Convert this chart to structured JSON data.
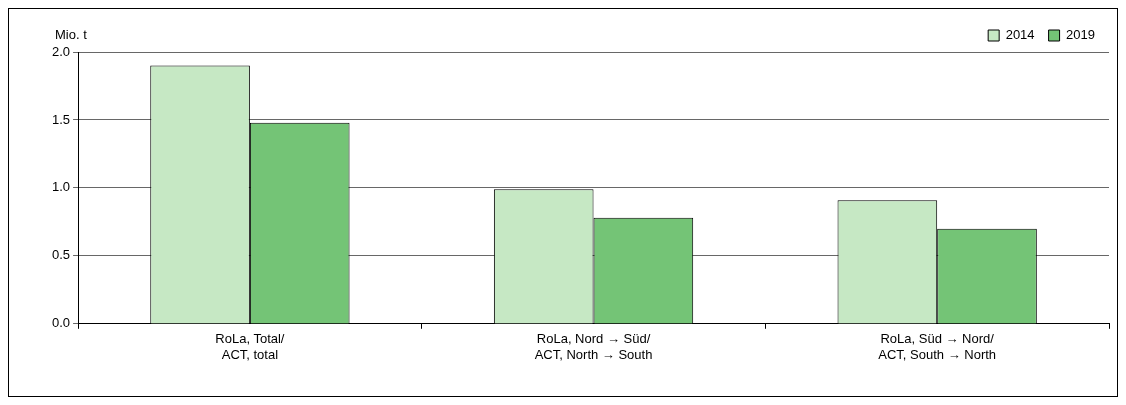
{
  "chart_data": {
    "type": "bar",
    "ylabel": "Mio. t",
    "categories": [
      "RoLa, Total/\nACT, total",
      "RoLa, Nord → Süd/\nACT, North → South",
      "RoLa, Süd → Nord/\nACT, South → North"
    ],
    "series": [
      {
        "name": "2014",
        "color": "#c6e8c4",
        "values": [
          1.9,
          0.99,
          0.91
        ]
      },
      {
        "name": "2019",
        "color": "#74c476",
        "values": [
          1.48,
          0.78,
          0.7
        ]
      }
    ],
    "ylim": [
      0,
      2
    ],
    "yticks": [
      {
        "value": 0,
        "label": "0.0"
      },
      0.5,
      {
        "value": 1,
        "label": "1.0"
      },
      1.5,
      {
        "value": 2,
        "label": "2.0"
      }
    ],
    "grid": "y",
    "legend": "top right"
  }
}
